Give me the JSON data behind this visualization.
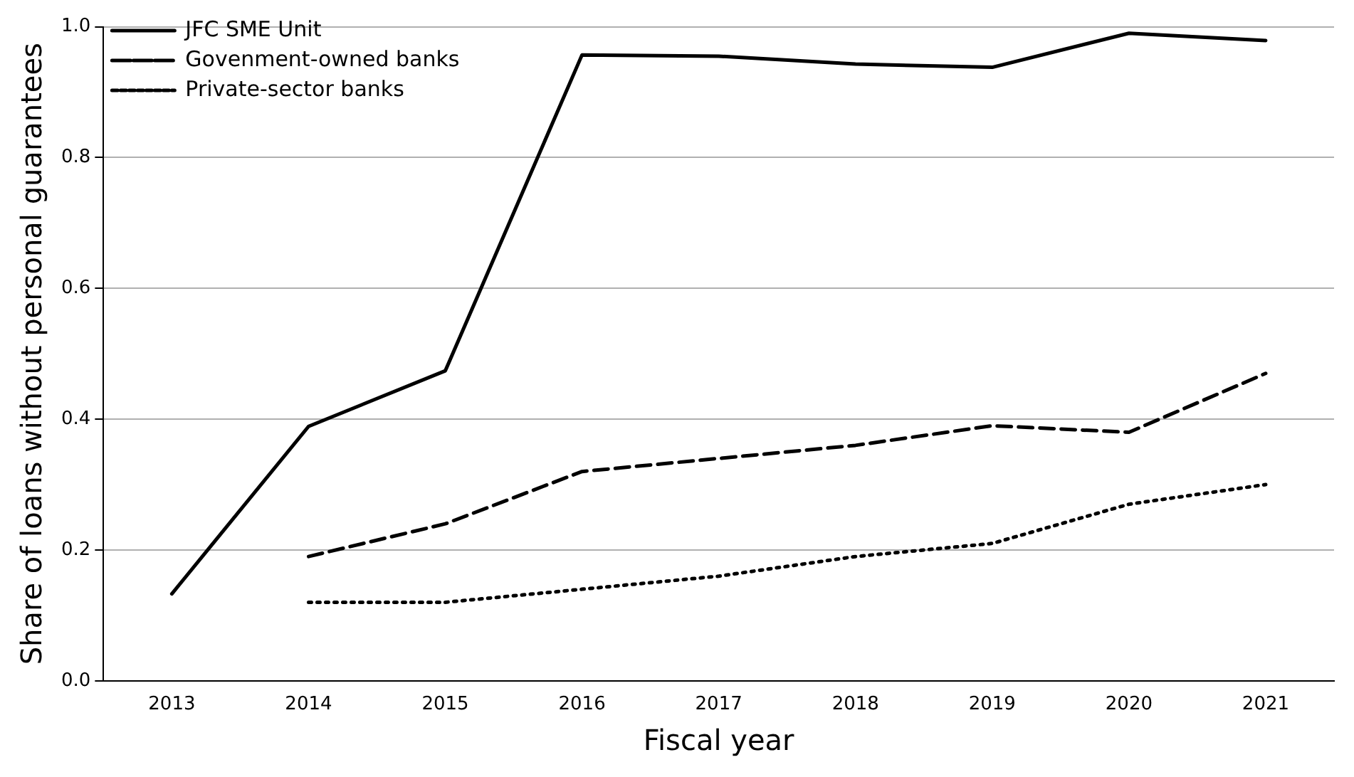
{
  "chart_data": {
    "type": "line",
    "xlabel": "Fiscal year",
    "ylabel": "Share of loans without personal guarantees",
    "categories": [
      "2013",
      "2014",
      "2015",
      "2016",
      "2017",
      "2018",
      "2019",
      "2020",
      "2021"
    ],
    "series": [
      {
        "name": "JFC SME Unit",
        "color": "#000000",
        "line_style": "solid",
        "values": [
          0.133,
          0.389,
          0.474,
          0.957,
          0.955,
          0.943,
          0.938,
          0.99,
          0.979
        ]
      },
      {
        "name": "Govenment-owned banks",
        "color": "#000000",
        "line_style": "dashed",
        "values": [
          null,
          0.19,
          0.24,
          0.32,
          0.34,
          0.36,
          0.39,
          0.38,
          0.47
        ]
      },
      {
        "name": "Private-sector banks",
        "color": "#000000",
        "line_style": "dotted",
        "values": [
          null,
          0.12,
          0.12,
          0.14,
          0.16,
          0.19,
          0.21,
          0.27,
          0.3
        ]
      }
    ],
    "ylim": [
      0,
      1
    ],
    "yticks": [
      {
        "value": 0,
        "label": "0.0"
      },
      0.2,
      0.4,
      0.6,
      0.8,
      {
        "value": 1,
        "label": "1.0"
      }
    ],
    "grid": "y",
    "legend": "top left",
    "marker": "none"
  }
}
